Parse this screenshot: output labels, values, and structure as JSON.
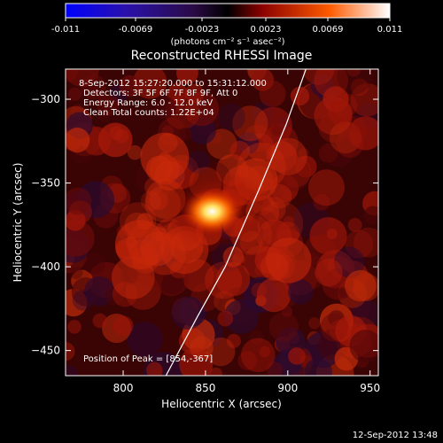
{
  "colorbar": {
    "ticks": [
      "-0.011",
      "-0.0069",
      "-0.0023",
      "0.0023",
      "0.0069",
      "0.011"
    ],
    "unit_label": "(photons cm⁻² s⁻¹ asec⁻²)",
    "stops": [
      {
        "v": -0.011,
        "color": "#0000ff"
      },
      {
        "v": -0.0069,
        "color": "#2a11aa"
      },
      {
        "v": -0.0023,
        "color": "#2a0a45"
      },
      {
        "v": 0.0,
        "color": "#000000"
      },
      {
        "v": 0.0023,
        "color": "#8a0000"
      },
      {
        "v": 0.0069,
        "color": "#ff5a00"
      },
      {
        "v": 0.011,
        "color": "#ffffff"
      }
    ]
  },
  "chart_data": {
    "type": "heatmap",
    "title": "Reconstructed RHESSI Image",
    "xlabel": "Heliocentric X (arcsec)",
    "ylabel": "Heliocentric Y (arcsec)",
    "xlim": [
      765,
      955
    ],
    "ylim": [
      -465,
      -282
    ],
    "xticks": [
      800,
      850,
      900,
      950
    ],
    "yticks": [
      -300,
      -350,
      -400,
      -450
    ],
    "peak": {
      "x": 854,
      "y": -367,
      "value": 0.011
    },
    "annotations": [
      "8-Sep-2012 15:27:20.000 to 15:31:12.000",
      "Detectors: 3F 5F 6F 7F 8F 9F, Att 0",
      "Energy Range: 6.0 - 12.0 keV",
      "Clean    Total counts: 1.22E+04",
      "Position of Peak = [854,-367]"
    ],
    "limb_curve": [
      {
        "x": 826,
        "y": -465
      },
      {
        "x": 845,
        "y": -430
      },
      {
        "x": 862,
        "y": -400
      },
      {
        "x": 882,
        "y": -355
      },
      {
        "x": 899,
        "y": -315
      },
      {
        "x": 911,
        "y": -282
      }
    ]
  },
  "footer": {
    "timestamp": "12-Sep-2012 13:48"
  }
}
